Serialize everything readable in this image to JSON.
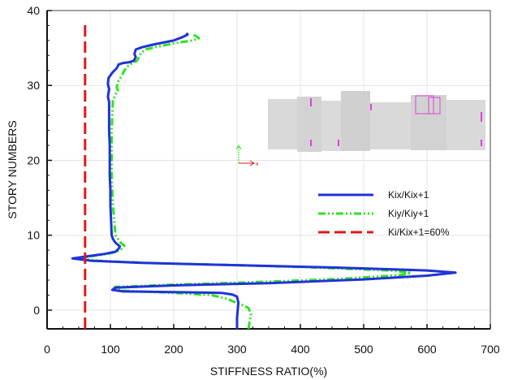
{
  "chart_data": {
    "type": "line",
    "title": "",
    "xlabel": "STIFFNESS RATIO(%)",
    "ylabel": "STORY NUMBERS",
    "xlim": [
      0,
      700
    ],
    "ylim": [
      -2.5,
      40
    ],
    "xticks": [
      0,
      100,
      200,
      300,
      400,
      500,
      600,
      700
    ],
    "yticks": [
      0,
      10,
      20,
      30,
      40
    ],
    "grid": true,
    "legend": "center-right",
    "inset": {
      "x_label": "x"
    },
    "series": [
      {
        "name": "Kix/Kix+1",
        "color": "#1f33d9",
        "style": "solid",
        "points": [
          [
            300,
            -2.5
          ],
          [
            300,
            -1
          ],
          [
            301,
            0
          ],
          [
            302,
            1
          ],
          [
            300,
            1.8
          ],
          [
            292,
            2.1
          ],
          [
            275,
            2.3
          ],
          [
            200,
            2.4
          ],
          [
            120,
            2.5
          ],
          [
            103,
            2.7
          ],
          [
            108,
            3.0
          ],
          [
            200,
            3.3
          ],
          [
            350,
            3.6
          ],
          [
            500,
            4.1
          ],
          [
            600,
            4.6
          ],
          [
            645,
            5.0
          ],
          [
            600,
            5.3
          ],
          [
            450,
            5.7
          ],
          [
            300,
            6.0
          ],
          [
            150,
            6.3
          ],
          [
            70,
            6.6
          ],
          [
            40,
            6.9
          ],
          [
            65,
            7.2
          ],
          [
            90,
            7.5
          ],
          [
            108,
            7.8
          ],
          [
            112,
            8.1
          ],
          [
            115,
            8.5
          ],
          [
            108,
            9.0
          ],
          [
            104,
            9.5
          ],
          [
            102,
            10
          ],
          [
            101,
            12
          ],
          [
            100,
            14
          ],
          [
            100,
            16
          ],
          [
            99,
            18
          ],
          [
            99,
            20
          ],
          [
            99,
            22
          ],
          [
            98,
            24
          ],
          [
            98,
            26
          ],
          [
            98,
            27.8
          ],
          [
            96,
            28.5
          ],
          [
            98,
            29.5
          ],
          [
            96,
            30.2
          ],
          [
            97,
            31
          ],
          [
            103,
            31.7
          ],
          [
            110,
            32.3
          ],
          [
            113,
            32.8
          ],
          [
            120,
            33.0
          ],
          [
            130,
            33.1
          ],
          [
            137,
            33.3
          ],
          [
            140,
            33.8
          ],
          [
            138,
            34.2
          ],
          [
            140,
            34.8
          ],
          [
            150,
            35.1
          ],
          [
            170,
            35.5
          ],
          [
            200,
            36
          ],
          [
            215,
            36.5
          ],
          [
            222,
            36.8
          ],
          [
            220,
            37.0
          ]
        ]
      },
      {
        "name": "Kiy/Kiy+1",
        "color": "#2ee31e",
        "style": "dashdot",
        "points": [
          [
            318,
            -2.5
          ],
          [
            320,
            -1.5
          ],
          [
            322,
            -0.5
          ],
          [
            318,
            0.3
          ],
          [
            308,
            0.7
          ],
          [
            298,
            1.0
          ],
          [
            285,
            1.5
          ],
          [
            260,
            2.0
          ],
          [
            200,
            2.3
          ],
          [
            120,
            2.6
          ],
          [
            104,
            2.8
          ],
          [
            108,
            3.1
          ],
          [
            200,
            3.4
          ],
          [
            350,
            3.8
          ],
          [
            470,
            4.2
          ],
          [
            560,
            4.7
          ],
          [
            575,
            5.0
          ],
          [
            540,
            5.3
          ],
          [
            420,
            5.7
          ],
          [
            300,
            6.0
          ],
          [
            160,
            6.3
          ],
          [
            80,
            6.6
          ],
          [
            50,
            6.9
          ],
          [
            70,
            7.2
          ],
          [
            95,
            7.5
          ],
          [
            110,
            7.8
          ],
          [
            118,
            8.2
          ],
          [
            122,
            8.6
          ],
          [
            116,
            9.0
          ],
          [
            112,
            9.5
          ],
          [
            108,
            10
          ],
          [
            106,
            12
          ],
          [
            104,
            14
          ],
          [
            103,
            16
          ],
          [
            102,
            18
          ],
          [
            102,
            20
          ],
          [
            102,
            22
          ],
          [
            102,
            24
          ],
          [
            103,
            26
          ],
          [
            104,
            28
          ],
          [
            108,
            28.8
          ],
          [
            112,
            29.3
          ],
          [
            110,
            29.8
          ],
          [
            112,
            30.5
          ],
          [
            118,
            31.3
          ],
          [
            122,
            32.0
          ],
          [
            128,
            32.6
          ],
          [
            135,
            33.0
          ],
          [
            142,
            33.3
          ],
          [
            145,
            33.8
          ],
          [
            148,
            34.3
          ],
          [
            155,
            34.8
          ],
          [
            175,
            35.2
          ],
          [
            205,
            35.7
          ],
          [
            230,
            36.0
          ],
          [
            240,
            36.3
          ],
          [
            235,
            36.6
          ],
          [
            228,
            36.9
          ]
        ]
      },
      {
        "name": "Ki/Kix+1=60%",
        "color": "#e01919",
        "style": "dashed",
        "points": [
          [
            60,
            -2.5
          ],
          [
            60,
            38.2
          ]
        ]
      }
    ]
  }
}
